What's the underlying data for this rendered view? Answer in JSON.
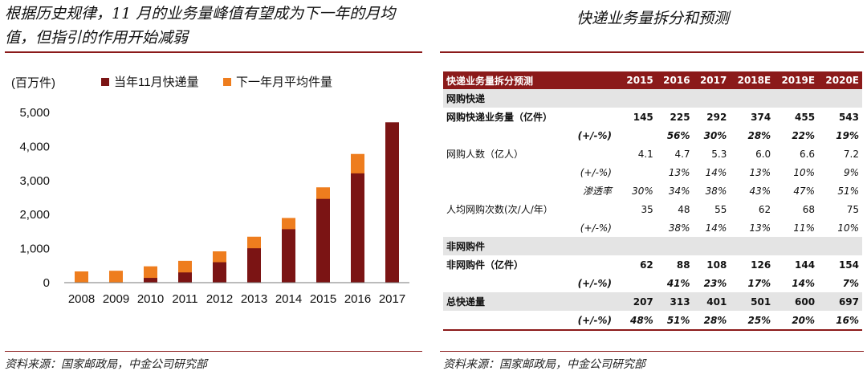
{
  "left": {
    "title": "根据历史规律，11 月的业务量峰值有望成为下一年的月均值，但指引的作用开始减弱",
    "source": "资料来源：国家邮政局，中金公司研究部"
  },
  "right": {
    "title": "快递业务量拆分和预测",
    "source": "资料来源：国家邮政局，中金公司研究部",
    "table": {
      "header": [
        "快递业务量拆分预测",
        "2015",
        "2016",
        "2017",
        "2018E",
        "2019E",
        "2020E"
      ],
      "rows": [
        {
          "style": "sec",
          "label": "网购快递",
          "values": [
            "",
            "",
            "",
            "",
            "",
            ""
          ]
        },
        {
          "style": "bold",
          "label": "网购快递业务量（亿件）",
          "values": [
            "145",
            "225",
            "292",
            "374",
            "455",
            "543"
          ]
        },
        {
          "style": "bit",
          "label": "(+/-%)",
          "indent": true,
          "values": [
            "",
            "56%",
            "30%",
            "28%",
            "22%",
            "19%"
          ]
        },
        {
          "style": "plain",
          "label": "网购人数（亿人）",
          "values": [
            "4.1",
            "4.7",
            "5.3",
            "6.0",
            "6.6",
            "7.2"
          ]
        },
        {
          "style": "it",
          "label": "(+/-%)",
          "indent": true,
          "values": [
            "",
            "13%",
            "14%",
            "13%",
            "10%",
            "9%"
          ]
        },
        {
          "style": "it",
          "label": "渗透率",
          "indent": true,
          "values": [
            "30%",
            "34%",
            "38%",
            "43%",
            "47%",
            "51%"
          ]
        },
        {
          "style": "plain",
          "label": "人均网购次数(次/人/年）",
          "values": [
            "35",
            "48",
            "55",
            "62",
            "68",
            "75"
          ]
        },
        {
          "style": "it",
          "label": "(+/-%)",
          "indent": true,
          "values": [
            "",
            "38%",
            "14%",
            "13%",
            "11%",
            "10%"
          ]
        },
        {
          "style": "sec",
          "label": "非网购件",
          "values": [
            "",
            "",
            "",
            "",
            "",
            ""
          ]
        },
        {
          "style": "bold",
          "label": "非网购件（亿件）",
          "values": [
            "62",
            "88",
            "108",
            "126",
            "144",
            "154"
          ]
        },
        {
          "style": "bit",
          "label": "(+/-%)",
          "indent": true,
          "values": [
            "",
            "41%",
            "23%",
            "17%",
            "14%",
            "7%"
          ]
        },
        {
          "style": "total",
          "label": "总快递量",
          "values": [
            "207",
            "313",
            "401",
            "501",
            "600",
            "697"
          ]
        },
        {
          "style": "bit",
          "label": "(+/-%)",
          "indent": true,
          "values": [
            "48%",
            "51%",
            "28%",
            "25%",
            "20%",
            "16%"
          ]
        }
      ]
    }
  },
  "chart_data": {
    "type": "bar",
    "unit_label": "(百万件)",
    "categories": [
      "2008",
      "2009",
      "2010",
      "2011",
      "2012",
      "2013",
      "2014",
      "2015",
      "2016",
      "2017"
    ],
    "series": [
      {
        "name": "当年11月快递量",
        "color": "#7B1414",
        "values": [
          0,
          0,
          140,
          300,
          600,
          1010,
          1570,
          2460,
          3210,
          4710
        ]
      },
      {
        "name": "下一年月平均件量",
        "color": "#EE7D1E",
        "values": [
          330,
          350,
          480,
          640,
          920,
          1350,
          1900,
          2800,
          3780,
          null
        ]
      }
    ],
    "ylim": [
      0,
      5000
    ],
    "yticks": [
      0,
      1000,
      2000,
      3000,
      4000,
      5000
    ],
    "ytick_labels": [
      "0",
      "1,000",
      "2,000",
      "3,000",
      "4,000",
      "5,000"
    ],
    "legend_position": "top"
  }
}
